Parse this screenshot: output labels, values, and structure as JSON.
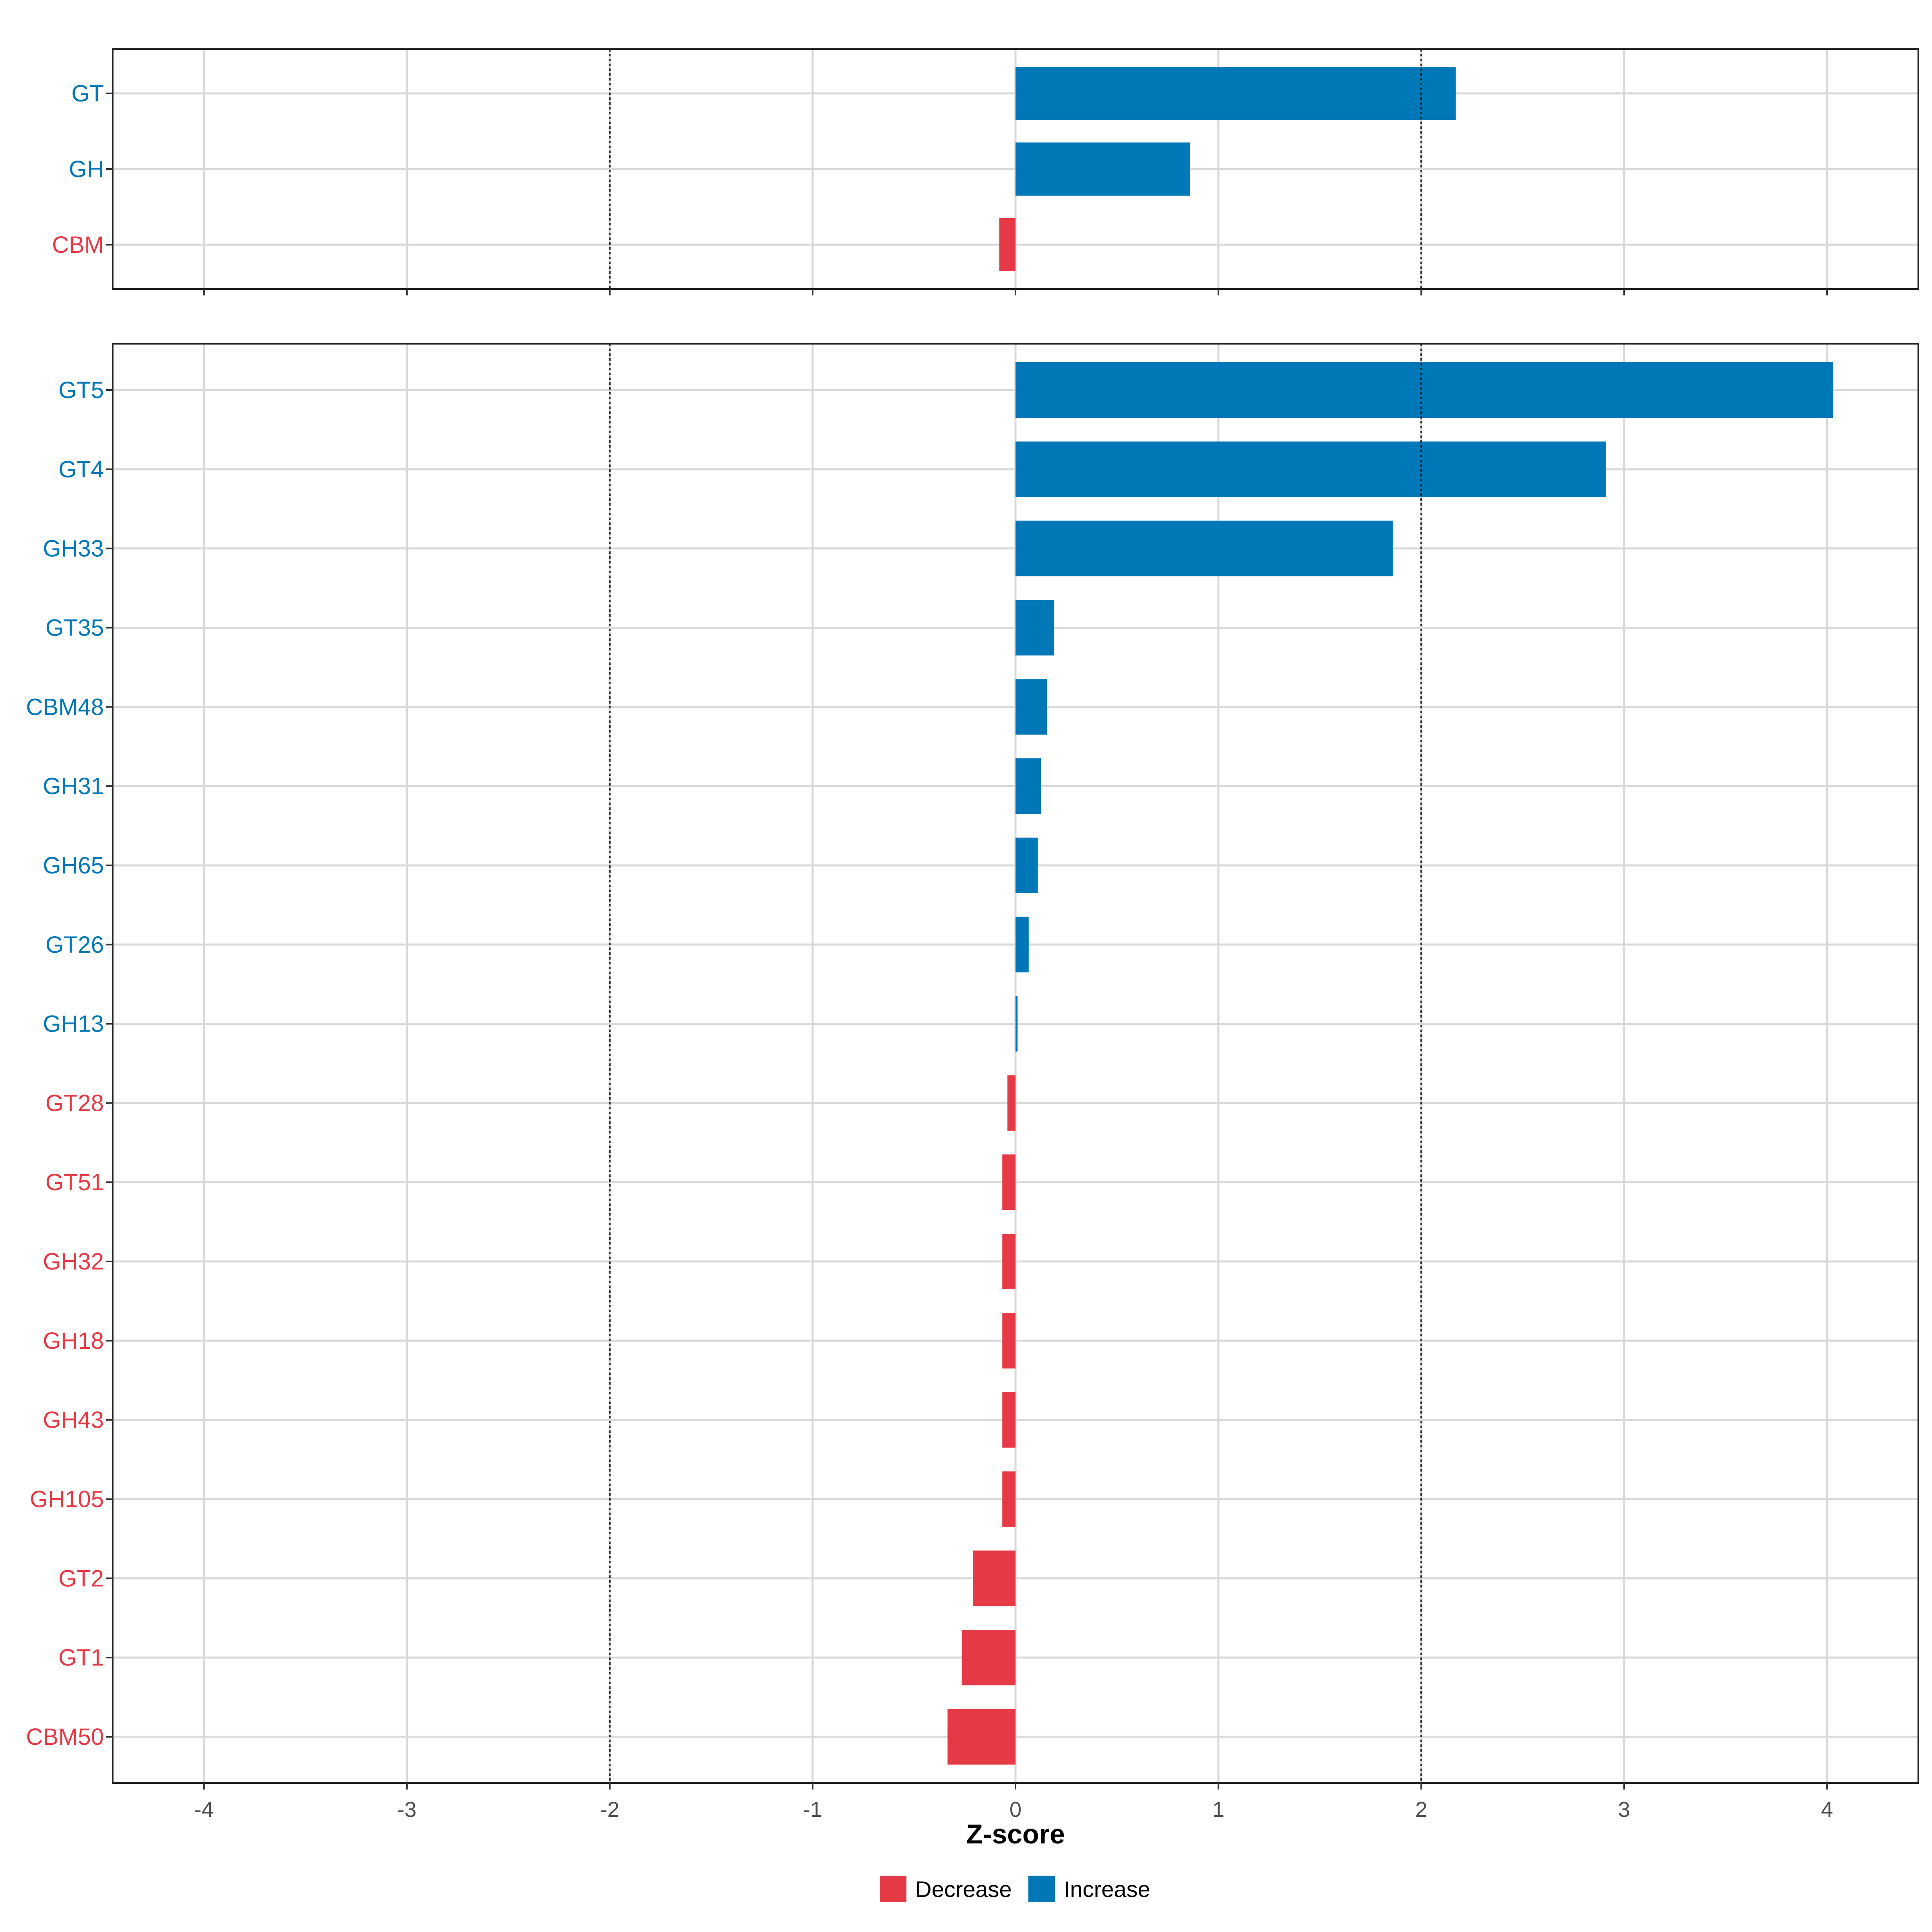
{
  "chart_data": {
    "type": "bar",
    "orientation": "horizontal",
    "xlabel": "Z-score",
    "xlim": [
      -4.45,
      4.45
    ],
    "x_ticks": [
      -4,
      -3,
      -2,
      -1,
      0,
      1,
      2,
      3,
      4
    ],
    "reference_lines": [
      -2,
      2
    ],
    "grid": true,
    "legend": {
      "placement": "bottom",
      "entries": [
        {
          "label": "Decrease",
          "color": "#E63946"
        },
        {
          "label": "Increase",
          "color": "#0077B6"
        }
      ]
    },
    "panels": [
      {
        "bars": [
          {
            "category": "GT",
            "value": 2.17,
            "direction": "Increase"
          },
          {
            "category": "GH",
            "value": 0.86,
            "direction": "Increase"
          },
          {
            "category": "CBM",
            "value": -0.08,
            "direction": "Decrease"
          }
        ]
      },
      {
        "bars": [
          {
            "category": "GT5",
            "value": 4.03,
            "direction": "Increase"
          },
          {
            "category": "GT4",
            "value": 2.91,
            "direction": "Increase"
          },
          {
            "category": "GH33",
            "value": 1.86,
            "direction": "Increase"
          },
          {
            "category": "GT35",
            "value": 0.19,
            "direction": "Increase"
          },
          {
            "category": "CBM48",
            "value": 0.155,
            "direction": "Increase"
          },
          {
            "category": "GH31",
            "value": 0.125,
            "direction": "Increase"
          },
          {
            "category": "GH65",
            "value": 0.11,
            "direction": "Increase"
          },
          {
            "category": "GT26",
            "value": 0.065,
            "direction": "Increase"
          },
          {
            "category": "GH13",
            "value": 0.01,
            "direction": "Increase"
          },
          {
            "category": "GT28",
            "value": -0.04,
            "direction": "Decrease"
          },
          {
            "category": "GT51",
            "value": -0.065,
            "direction": "Decrease"
          },
          {
            "category": "GH32",
            "value": -0.065,
            "direction": "Decrease"
          },
          {
            "category": "GH18",
            "value": -0.065,
            "direction": "Decrease"
          },
          {
            "category": "GH43",
            "value": -0.065,
            "direction": "Decrease"
          },
          {
            "category": "GH105",
            "value": -0.065,
            "direction": "Decrease"
          },
          {
            "category": "GT2",
            "value": -0.21,
            "direction": "Decrease"
          },
          {
            "category": "GT1",
            "value": -0.265,
            "direction": "Decrease"
          },
          {
            "category": "CBM50",
            "value": -0.335,
            "direction": "Decrease"
          }
        ]
      }
    ]
  }
}
